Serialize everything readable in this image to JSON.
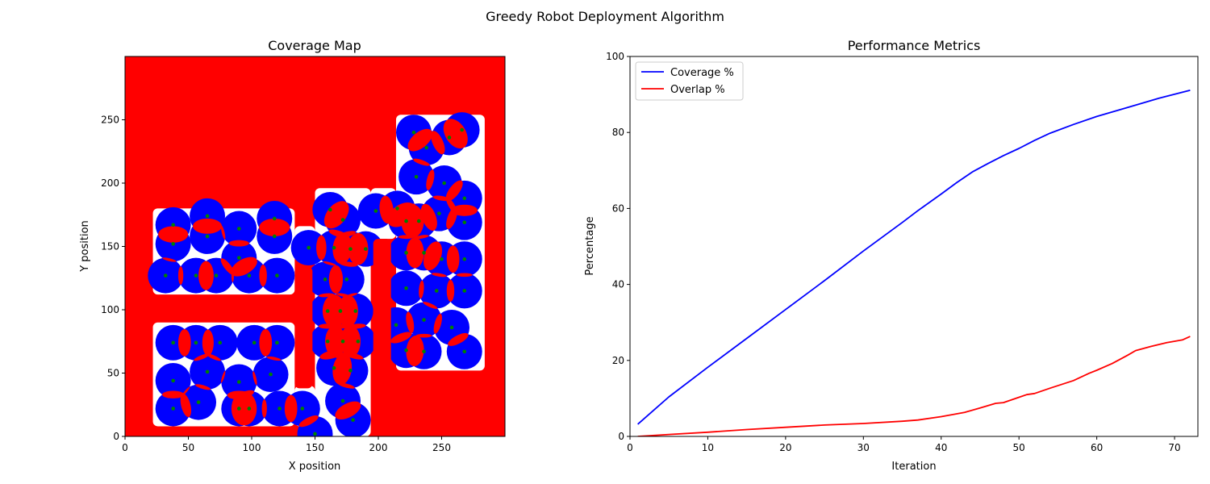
{
  "figure_title": "Greedy Robot Deployment Algorithm",
  "chart_data": [
    {
      "type": "heatmap",
      "title": "Coverage Map",
      "xlabel": "X position",
      "ylabel": "Y position",
      "xlim": [
        0,
        300
      ],
      "ylim": [
        0,
        300
      ],
      "xticks": [
        0,
        50,
        100,
        150,
        200,
        250
      ],
      "yticks": [
        0,
        50,
        100,
        150,
        200,
        250
      ],
      "colors": {
        "obstacle": "#ff0000",
        "free": "#ffffff",
        "covered": "#0000ff",
        "overlap": "#ff0000",
        "robot": "#008000"
      },
      "free_regions": [
        {
          "x0": 22,
          "x1": 134,
          "y0": 112,
          "y1": 180
        },
        {
          "x0": 22,
          "x1": 134,
          "y0": 8,
          "y1": 90
        },
        {
          "x0": 134,
          "x1": 150,
          "y0": 8,
          "y1": 40
        },
        {
          "x0": 150,
          "x1": 194,
          "y0": 0,
          "y1": 196
        },
        {
          "x0": 134,
          "x1": 150,
          "y0": 140,
          "y1": 166
        },
        {
          "x0": 194,
          "x1": 214,
          "y0": 156,
          "y1": 196
        },
        {
          "x0": 214,
          "x1": 284,
          "y0": 52,
          "y1": 254
        }
      ],
      "obstacle_pillars": [
        {
          "x0": 134,
          "x1": 148,
          "y0": 38,
          "y1": 134
        },
        {
          "x0": 196,
          "x1": 210,
          "y0": 0,
          "y1": 156
        }
      ],
      "coverage_radius": 14,
      "robots": [
        [
          38,
          167
        ],
        [
          65,
          174
        ],
        [
          90,
          164
        ],
        [
          118,
          172
        ],
        [
          38,
          152
        ],
        [
          65,
          158
        ],
        [
          90,
          141
        ],
        [
          118,
          158
        ],
        [
          32,
          127
        ],
        [
          56,
          127
        ],
        [
          72,
          127
        ],
        [
          98,
          127
        ],
        [
          120,
          127
        ],
        [
          38,
          74
        ],
        [
          56,
          74
        ],
        [
          75,
          74
        ],
        [
          102,
          74
        ],
        [
          120,
          74
        ],
        [
          38,
          44
        ],
        [
          65,
          51
        ],
        [
          90,
          43
        ],
        [
          115,
          49
        ],
        [
          38,
          22
        ],
        [
          58,
          27
        ],
        [
          90,
          22
        ],
        [
          98,
          22
        ],
        [
          122,
          22
        ],
        [
          140,
          22
        ],
        [
          150,
          2
        ],
        [
          162,
          179
        ],
        [
          172,
          171
        ],
        [
          198,
          178
        ],
        [
          145,
          149
        ],
        [
          165,
          149
        ],
        [
          178,
          148
        ],
        [
          190,
          148
        ],
        [
          158,
          124
        ],
        [
          175,
          124
        ],
        [
          160,
          99
        ],
        [
          170,
          99
        ],
        [
          182,
          99
        ],
        [
          160,
          75
        ],
        [
          172,
          75
        ],
        [
          184,
          75
        ],
        [
          165,
          54
        ],
        [
          178,
          52
        ],
        [
          172,
          28
        ],
        [
          180,
          13
        ],
        [
          222,
          170
        ],
        [
          228,
          240
        ],
        [
          238,
          228
        ],
        [
          266,
          242
        ],
        [
          256,
          236
        ],
        [
          230,
          205
        ],
        [
          252,
          200
        ],
        [
          268,
          188
        ],
        [
          215,
          180
        ],
        [
          232,
          170
        ],
        [
          248,
          176
        ],
        [
          268,
          169
        ],
        [
          222,
          145
        ],
        [
          236,
          145
        ],
        [
          250,
          140
        ],
        [
          268,
          140
        ],
        [
          222,
          117
        ],
        [
          246,
          115
        ],
        [
          268,
          115
        ],
        [
          214,
          88
        ],
        [
          236,
          92
        ],
        [
          258,
          86
        ],
        [
          222,
          68
        ],
        [
          236,
          67
        ],
        [
          268,
          67
        ]
      ]
    },
    {
      "type": "line",
      "title": "Performance Metrics",
      "xlabel": "Iteration",
      "ylabel": "Percentage",
      "xlim": [
        0,
        73
      ],
      "ylim": [
        0,
        100
      ],
      "xticks": [
        0,
        10,
        20,
        30,
        40,
        50,
        60,
        70
      ],
      "yticks": [
        0,
        20,
        40,
        60,
        80,
        100
      ],
      "legend_position": "top-left",
      "series": [
        {
          "name": "Coverage %",
          "color": "#0000ff",
          "x": [
            1,
            5,
            10,
            15,
            20,
            25,
            30,
            35,
            37,
            40,
            42,
            44,
            46,
            48,
            50,
            52,
            54,
            57,
            60,
            64,
            68,
            72
          ],
          "y": [
            3.2,
            10.4,
            18.2,
            25.8,
            33.4,
            41.0,
            48.8,
            56.3,
            59.4,
            63.8,
            66.8,
            69.6,
            71.8,
            73.9,
            75.8,
            77.9,
            79.8,
            82.1,
            84.2,
            86.6,
            89.0,
            91.1
          ]
        },
        {
          "name": "Overlap %",
          "color": "#ff0000",
          "x": [
            1,
            5,
            10,
            15,
            20,
            25,
            30,
            35,
            37,
            40,
            43,
            45,
            47,
            48,
            50,
            51,
            52,
            54,
            57,
            59,
            60,
            62,
            64,
            65,
            67,
            69,
            71,
            72
          ],
          "y": [
            0.0,
            0.5,
            1.1,
            1.8,
            2.4,
            3.0,
            3.4,
            4.0,
            4.3,
            5.2,
            6.3,
            7.5,
            8.7,
            8.9,
            10.3,
            11.0,
            11.3,
            12.7,
            14.7,
            16.6,
            17.4,
            19.2,
            21.4,
            22.6,
            23.7,
            24.7,
            25.4,
            26.3
          ]
        }
      ]
    }
  ]
}
